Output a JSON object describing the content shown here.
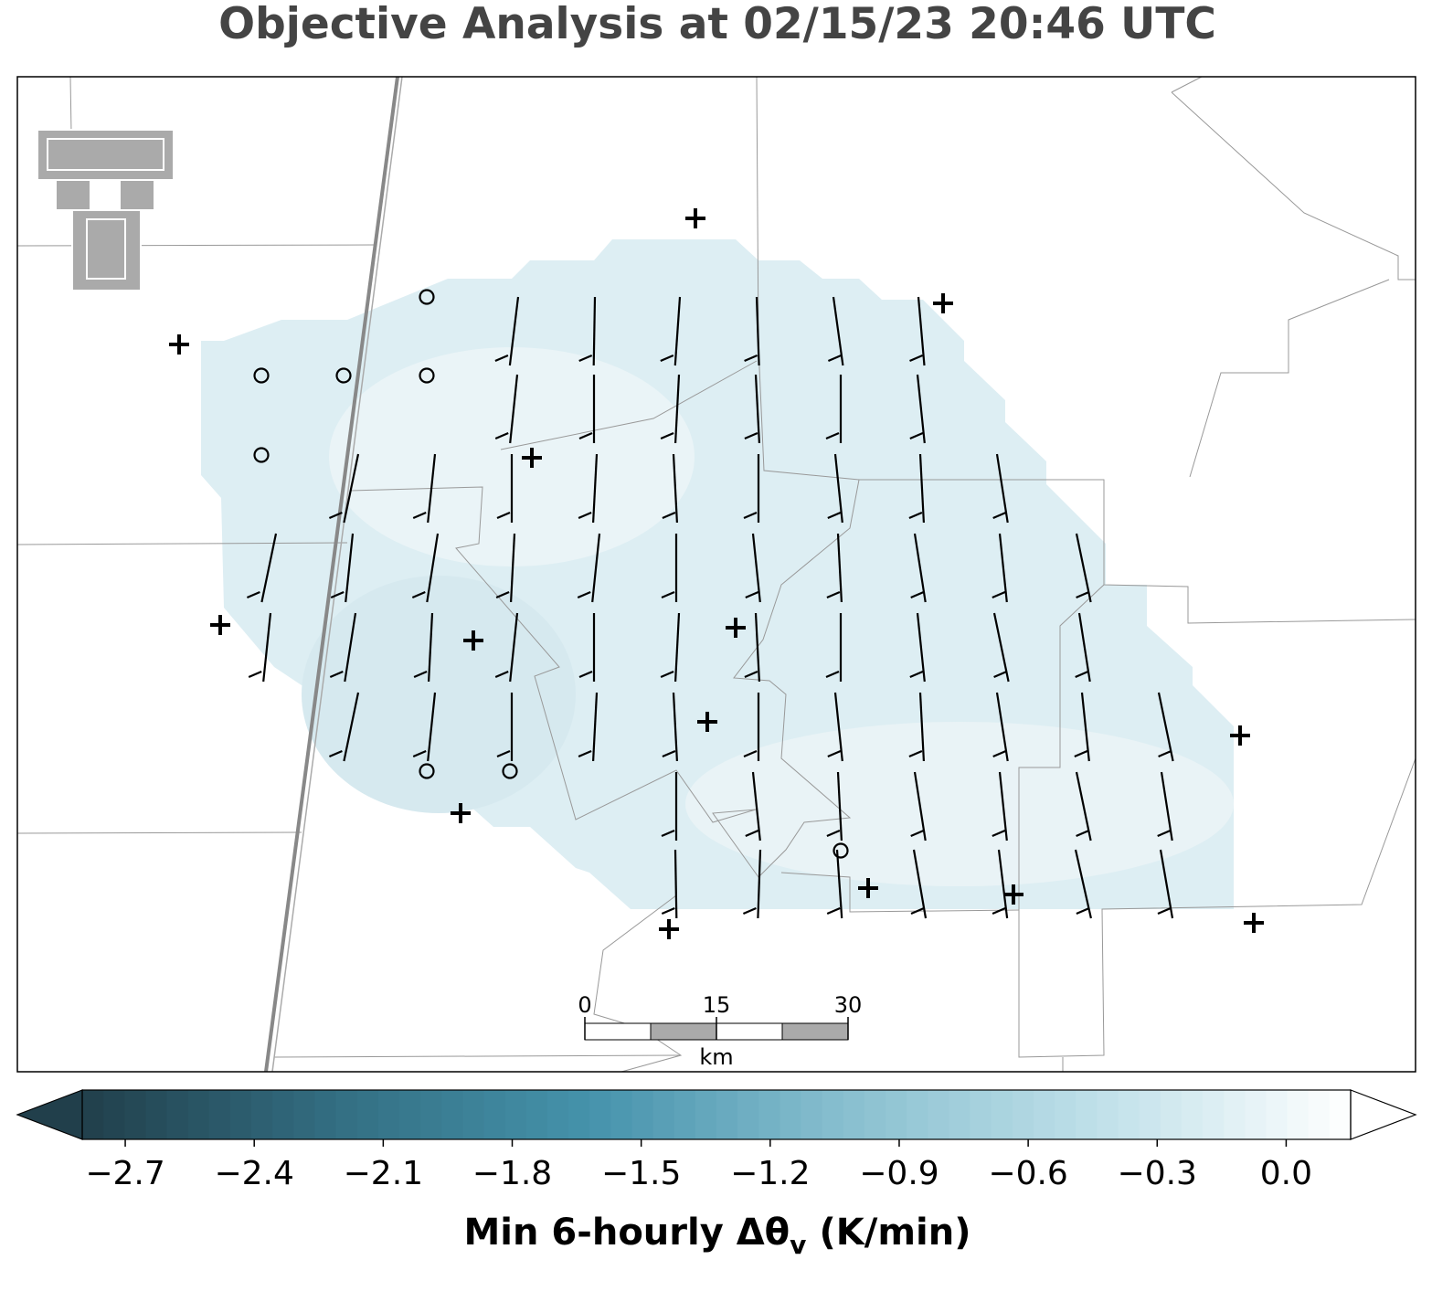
{
  "title": "Objective Analysis at 02/15/23 20:46 UTC",
  "scale_bar": {
    "ticks": [
      0,
      15,
      30
    ],
    "xlim": [
      0,
      30
    ],
    "unit": "km"
  },
  "colorbar": {
    "label": "Min 6-hourly Δθ",
    "label_subscript": "v",
    "label_units": "(K/min)",
    "lim": [
      -2.8,
      0.15
    ],
    "colors": [
      "#213f4b",
      "#336e82",
      "#4592ab",
      "#88bfcf",
      "#bfe0e9",
      "#ffffff"
    ],
    "ticks": [
      {
        "value": -2.7,
        "label": "−2.7"
      },
      {
        "value": -2.4,
        "label": "−2.4"
      },
      {
        "value": -2.1,
        "label": "−2.1"
      },
      {
        "value": -1.8,
        "label": "−1.8"
      },
      {
        "value": -1.5,
        "label": "−1.5"
      },
      {
        "value": -1.2,
        "label": "−1.2"
      },
      {
        "value": -0.9,
        "label": "−0.9"
      },
      {
        "value": -0.6,
        "label": "−0.6"
      },
      {
        "value": -0.3,
        "label": "−0.3"
      },
      {
        "value": 0,
        "label": "0.0"
      }
    ]
  }
}
